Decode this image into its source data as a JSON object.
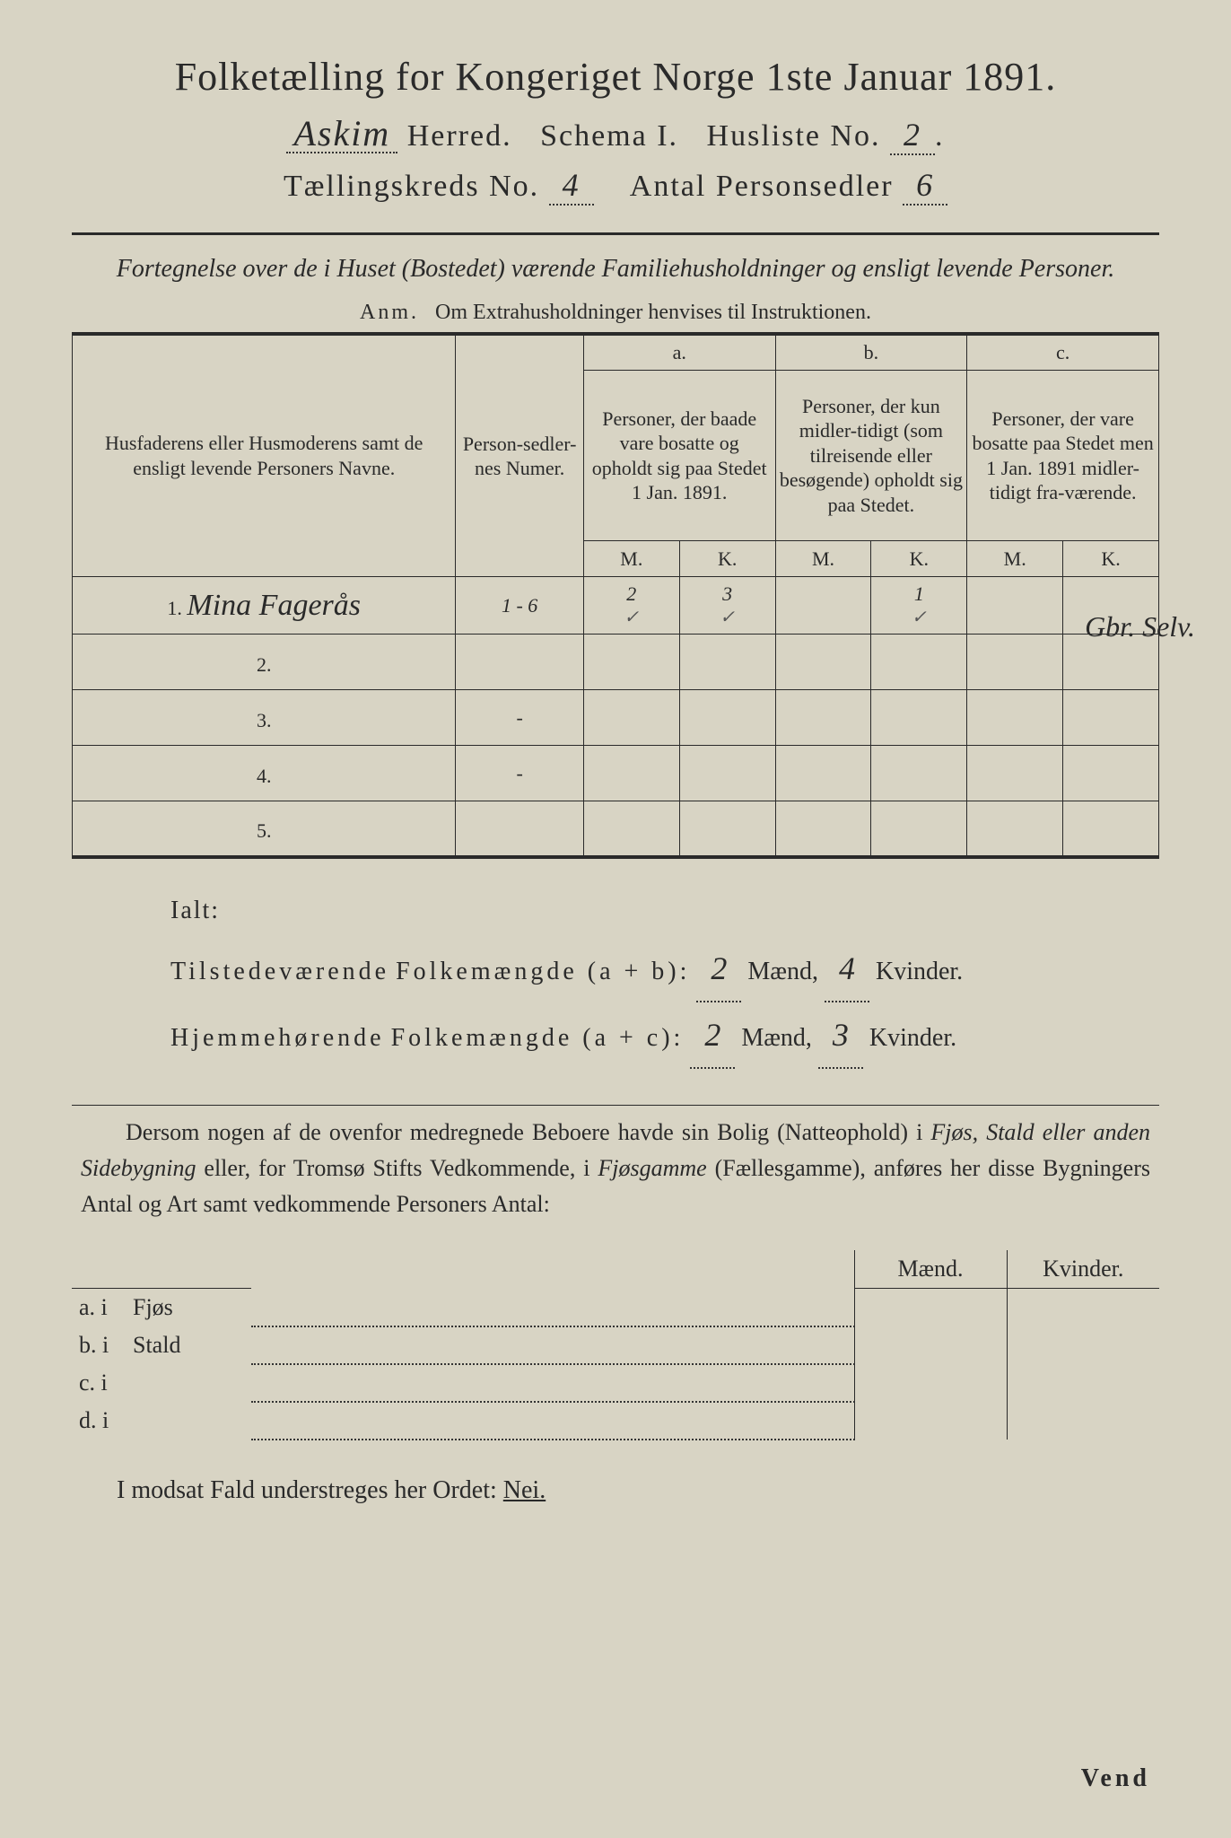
{
  "header": {
    "main_title": "Folketælling for Kongeriget Norge 1ste Januar 1891.",
    "herred_value": "Askim",
    "herred_label": "Herred.",
    "schema_label": "Schema I.",
    "husliste_label": "Husliste No.",
    "husliste_value": "2",
    "kreds_label": "Tællingskreds No.",
    "kreds_value": "4",
    "antal_label": "Antal Personsedler",
    "antal_value": "6"
  },
  "subtitle": "Fortegnelse over de i Huset (Bostedet) værende Familiehusholdninger og ensligt levende Personer.",
  "anm_label": "Anm.",
  "anm_text": "Om Extrahusholdninger henvises til Instruktionen.",
  "table": {
    "col_names": "Husfaderens eller Husmoderens samt de ensligt levende Personers Navne.",
    "col_num": "Person-sedler-nes Numer.",
    "col_a_label": "a.",
    "col_a": "Personer, der baade vare bosatte og opholdt sig paa Stedet 1 Jan. 1891.",
    "col_b_label": "b.",
    "col_b": "Personer, der kun midler-tidigt (som tilreisende eller besøgende) opholdt sig paa Stedet.",
    "col_c_label": "c.",
    "col_c": "Personer, der vare bosatte paa Stedet men 1 Jan. 1891 midler-tidigt fra-værende.",
    "M": "M.",
    "K": "K.",
    "rows": [
      {
        "n": "1.",
        "name": "Mina Fagerås",
        "num": "1 - 6",
        "aM": "2",
        "aK": "3",
        "bM": "",
        "bK": "1",
        "cM": "",
        "cK": ""
      },
      {
        "n": "2.",
        "name": "",
        "num": "",
        "aM": "",
        "aK": "",
        "bM": "",
        "bK": "",
        "cM": "",
        "cK": ""
      },
      {
        "n": "3.",
        "name": "",
        "num": "-",
        "aM": "",
        "aK": "",
        "bM": "",
        "bK": "",
        "cM": "",
        "cK": ""
      },
      {
        "n": "4.",
        "name": "",
        "num": "-",
        "aM": "",
        "aK": "",
        "bM": "",
        "bK": "",
        "cM": "",
        "cK": ""
      },
      {
        "n": "5.",
        "name": "",
        "num": "",
        "aM": "",
        "aK": "",
        "bM": "",
        "bK": "",
        "cM": "",
        "cK": ""
      }
    ],
    "margin_note": "Gbr. Selv."
  },
  "ialt": {
    "label": "Ialt:",
    "line1_a": "Tilstedeværende",
    "line1_b": "Folkemængde (a + b):",
    "line1_m": "2",
    "line1_k": "4",
    "line2_a": "Hjemmehørende",
    "line2_b": "Folkemængde (a + c):",
    "line2_m": "2",
    "line2_k": "3",
    "maend": "Mænd,",
    "kvinder": "Kvinder."
  },
  "para": "Dersom nogen af de ovenfor medregnede Beboere havde sin Bolig (Natteophold) i Fjøs, Stald eller anden Sidebygning eller, for Tromsø Stifts Vedkommende, i Fjøsgamme (Fællesgamme), anføres her disse Bygningers Antal og Art samt vedkommende Personers Antal:",
  "bldg": {
    "maend": "Mænd.",
    "kvinder": "Kvinder.",
    "rows": [
      {
        "lab": "a.  i",
        "type": "Fjøs"
      },
      {
        "lab": "b.  i",
        "type": "Stald"
      },
      {
        "lab": "c.  i",
        "type": ""
      },
      {
        "lab": "d.  i",
        "type": ""
      }
    ]
  },
  "footer": "I modsat Fald understreges her Ordet:",
  "nei": "Nei.",
  "vend": "Vend"
}
